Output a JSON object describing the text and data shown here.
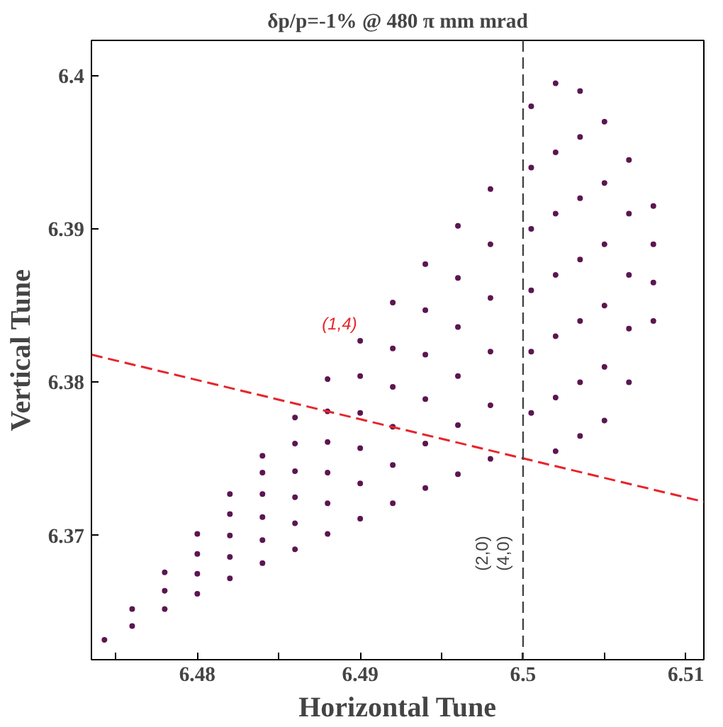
{
  "chart_data": {
    "type": "scatter",
    "title": "δp/p=-1% @ 480 π mm mrad",
    "xlabel": "Horizontal Tune",
    "ylabel": "Vertical Tune",
    "xlim": [
      6.4735,
      6.5111
    ],
    "ylim": [
      6.3619,
      6.4023
    ],
    "xticks": [
      {
        "value": 6.475,
        "label": null
      },
      6.48,
      {
        "value": 6.485,
        "label": null
      },
      6.49,
      {
        "value": 6.495,
        "label": null
      },
      6.5,
      {
        "value": 6.505,
        "label": null
      },
      6.51
    ],
    "yticks": [
      6.37,
      6.38,
      6.39,
      6.4
    ],
    "grid": false,
    "marker": "circle",
    "series": [
      {
        "color": "#5c1650",
        "x": [
          6.4743,
          6.476,
          6.476,
          6.478,
          6.478,
          6.478,
          6.48,
          6.48,
          6.48,
          6.48,
          6.482,
          6.482,
          6.482,
          6.482,
          6.482,
          6.484,
          6.484,
          6.484,
          6.484,
          6.484,
          6.484,
          6.486,
          6.486,
          6.486,
          6.486,
          6.486,
          6.486,
          6.488,
          6.488,
          6.488,
          6.488,
          6.488,
          6.488,
          6.49,
          6.49,
          6.49,
          6.49,
          6.49,
          6.49,
          6.492,
          6.492,
          6.492,
          6.492,
          6.492,
          6.492,
          6.494,
          6.494,
          6.494,
          6.494,
          6.494,
          6.494,
          6.496,
          6.496,
          6.496,
          6.496,
          6.496,
          6.496,
          6.498,
          6.498,
          6.498,
          6.498,
          6.498,
          6.498,
          6.5005,
          6.5005,
          6.5005,
          6.5005,
          6.5005,
          6.5005,
          6.502,
          6.502,
          6.502,
          6.502,
          6.502,
          6.502,
          6.502,
          6.5035,
          6.5035,
          6.5035,
          6.5035,
          6.5035,
          6.5035,
          6.5035,
          6.505,
          6.505,
          6.505,
          6.505,
          6.505,
          6.505,
          6.5065,
          6.5065,
          6.5065,
          6.5065,
          6.5065,
          6.508,
          6.508,
          6.508,
          6.508
        ],
        "values": [
          6.3632,
          6.3641,
          6.3652,
          6.3652,
          6.3664,
          6.3676,
          6.3662,
          6.3675,
          6.3688,
          6.3701,
          6.3672,
          6.3686,
          6.37,
          6.3714,
          6.3727,
          6.3682,
          6.3697,
          6.3712,
          6.3727,
          6.3741,
          6.3752,
          6.3691,
          6.3708,
          6.3725,
          6.3742,
          6.376,
          6.3777,
          6.3701,
          6.3721,
          6.3741,
          6.3761,
          6.3781,
          6.3802,
          6.3711,
          6.3734,
          6.3757,
          6.378,
          6.3804,
          6.3827,
          6.3721,
          6.3746,
          6.3771,
          6.3797,
          6.3822,
          6.3852,
          6.3731,
          6.376,
          6.3789,
          6.3818,
          6.3847,
          6.3877,
          6.374,
          6.3772,
          6.3804,
          6.3836,
          6.3868,
          6.3902,
          6.375,
          6.3785,
          6.382,
          6.3855,
          6.389,
          6.3926,
          6.378,
          6.382,
          6.386,
          6.39,
          6.394,
          6.398,
          6.3755,
          6.379,
          6.383,
          6.387,
          6.391,
          6.395,
          6.3995,
          6.3765,
          6.38,
          6.384,
          6.388,
          6.392,
          6.396,
          6.399,
          6.3775,
          6.381,
          6.385,
          6.389,
          6.393,
          6.397,
          6.38,
          6.3835,
          6.387,
          6.391,
          6.3945,
          6.384,
          6.3865,
          6.389,
          6.3915
        ]
      },
      {
        "type": "line",
        "color": "#e8242a",
        "line_style": "dashed",
        "marker": "none",
        "x": [
          6.4735,
          6.5111
        ],
        "values": [
          6.3818,
          6.3722
        ]
      }
    ],
    "ref_lines": [
      {
        "axis": "x",
        "value": 6.5,
        "color": "#444444",
        "line_style": "dashed"
      }
    ],
    "annotations": [
      "(1,4)",
      "(2,0)",
      "(4,0)"
    ]
  }
}
